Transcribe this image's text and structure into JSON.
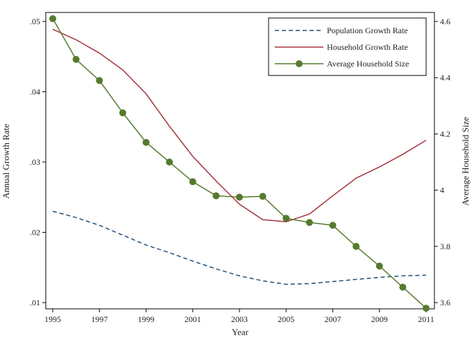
{
  "chart_data": {
    "type": "line",
    "xlabel": "Year",
    "ylabel_left": "Annual Growth Rate",
    "ylabel_right": "Average Household Size",
    "xlim": [
      1995,
      2011
    ],
    "ylim_left": [
      0.01,
      0.05
    ],
    "ylim_right": [
      3.6,
      4.6
    ],
    "x_ticks": [
      1995,
      1997,
      1999,
      2001,
      2003,
      2005,
      2007,
      2009,
      2011
    ],
    "x_tick_labels": [
      "1995",
      "1997",
      "1999",
      "2001",
      "2003",
      "2005",
      "2007",
      "2009",
      "2011"
    ],
    "y_left_ticks": [
      0.01,
      0.02,
      0.03,
      0.04,
      0.05
    ],
    "y_left_tick_labels": [
      ".01",
      ".02",
      ".03",
      ".04",
      ".05"
    ],
    "y_right_ticks": [
      3.6,
      3.8,
      4,
      4.2,
      4.4,
      4.6
    ],
    "y_right_tick_labels": [
      "3.6",
      "3.8",
      "4",
      "4.2",
      "4.4",
      "4.6"
    ],
    "grid": false,
    "legend_position": "top-right",
    "x": [
      1995,
      1996,
      1997,
      1998,
      1999,
      2000,
      2001,
      2002,
      2003,
      2004,
      2005,
      2006,
      2007,
      2008,
      2009,
      2010,
      2011
    ],
    "series": [
      {
        "name": "Population Growth Rate",
        "axis": "left",
        "style": "dashed",
        "color": "#1f4e79",
        "values": [
          0.023,
          0.0221,
          0.021,
          0.0196,
          0.0182,
          0.0171,
          0.0159,
          0.0148,
          0.0138,
          0.0131,
          0.0126,
          0.0127,
          0.013,
          0.0133,
          0.0136,
          0.0138,
          0.0139
        ]
      },
      {
        "name": "Household Growth Rate",
        "axis": "left",
        "style": "solid",
        "color": "#a3323a",
        "values": [
          0.0489,
          0.0474,
          0.0455,
          0.0431,
          0.0397,
          0.0351,
          0.0308,
          0.0273,
          0.024,
          0.0218,
          0.0215,
          0.0226,
          0.0252,
          0.0277,
          0.0293,
          0.0311,
          0.0331
        ]
      },
      {
        "name": "Average Household Size",
        "axis": "right",
        "style": "solid-markers",
        "color": "#557a2e",
        "values": [
          4.61,
          4.465,
          4.39,
          4.275,
          4.17,
          4.1,
          4.03,
          3.98,
          3.975,
          3.978,
          3.9,
          3.885,
          3.875,
          3.8,
          3.73,
          3.655,
          3.58
        ]
      }
    ]
  }
}
